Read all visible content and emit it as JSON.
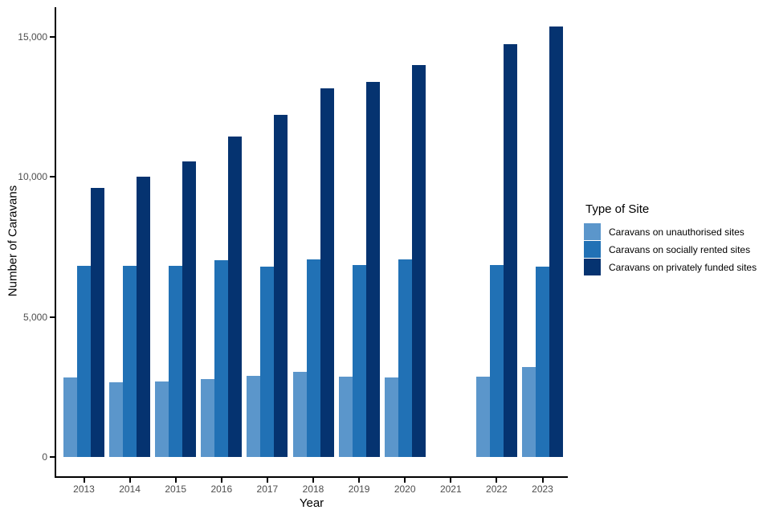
{
  "chart_data": {
    "type": "bar",
    "subtype": "grouped",
    "title": "",
    "xlabel": "Year",
    "ylabel": "Number of Caravans",
    "categories": [
      "2013",
      "2014",
      "2015",
      "2016",
      "2017",
      "2018",
      "2019",
      "2020",
      "2021",
      "2022",
      "2023"
    ],
    "series": [
      {
        "name": "Caravans on unauthorised sites",
        "color": "#5B96CB",
        "values": [
          2850,
          2670,
          2700,
          2790,
          2900,
          3050,
          2860,
          2840,
          null,
          2870,
          3210
        ]
      },
      {
        "name": "Caravans on socially rented sites",
        "color": "#2171B5",
        "values": [
          6840,
          6840,
          6820,
          7020,
          6790,
          7050,
          6870,
          7050,
          null,
          6870,
          6790
        ]
      },
      {
        "name": "Caravans on privately funded sites",
        "color": "#053370",
        "values": [
          9610,
          10010,
          10560,
          11450,
          12230,
          13180,
          13390,
          13990,
          null,
          14740,
          15370
        ]
      }
    ],
    "y_ticks": [
      {
        "value": 0,
        "label": "0"
      },
      {
        "value": 5000,
        "label": "5,000"
      },
      {
        "value": 10000,
        "label": "10,000"
      },
      {
        "value": 15000,
        "label": "15,000"
      }
    ],
    "ylim": [
      0,
      16100
    ],
    "grid": false,
    "note_missing_category": "2021",
    "legend": {
      "title": "Type of Site",
      "position": "right"
    }
  }
}
